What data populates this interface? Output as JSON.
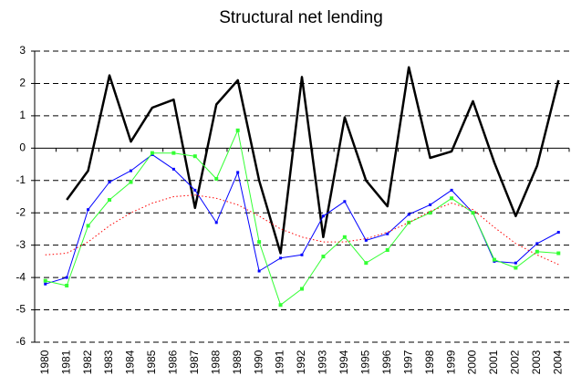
{
  "chart_data": {
    "type": "line",
    "title": "Structural net lending",
    "categories": [
      "1980",
      "1981",
      "1982",
      "1983",
      "1984",
      "1985",
      "1986",
      "1987",
      "1988",
      "1989",
      "1990",
      "1991",
      "1992",
      "1993",
      "1994",
      "1995",
      "1996",
      "1997",
      "1998",
      "1999",
      "2000",
      "2001",
      "2002",
      "2003",
      "2004"
    ],
    "ylim": [
      -6,
      3
    ],
    "yticks": [
      -6,
      -5,
      -4,
      -3,
      -2,
      -1,
      0,
      1,
      2,
      3
    ],
    "grid": true,
    "series": [
      {
        "color": "#000000",
        "width": 2.5,
        "marker": "none",
        "dash": "solid",
        "values": [
          null,
          -1.6,
          -0.7,
          2.25,
          0.2,
          1.25,
          1.5,
          -1.85,
          1.35,
          2.1,
          -1.0,
          -3.25,
          2.2,
          -2.75,
          0.95,
          -1.0,
          -1.8,
          2.5,
          -0.3,
          -0.1,
          1.45,
          -0.45,
          -2.1,
          -0.55,
          2.1
        ]
      },
      {
        "color": "#0000ff",
        "width": 1,
        "marker": "square",
        "dash": "solid",
        "values": [
          -4.2,
          -4.0,
          -1.9,
          -1.05,
          -0.7,
          -0.2,
          -0.65,
          -1.3,
          -2.3,
          -0.75,
          -3.8,
          -3.4,
          -3.3,
          -2.1,
          -1.65,
          -2.85,
          -2.65,
          -2.05,
          -1.75,
          -1.3,
          -2.0,
          -3.5,
          -3.55,
          -2.95,
          -2.6
        ]
      },
      {
        "color": "#33ff33",
        "width": 1,
        "marker": "square",
        "dash": "solid",
        "values": [
          -4.1,
          -4.25,
          -2.4,
          -1.6,
          -1.05,
          -0.15,
          -0.15,
          -0.25,
          -0.95,
          0.55,
          -2.9,
          -4.85,
          -4.35,
          -3.35,
          -2.75,
          -3.55,
          -3.15,
          -2.3,
          -2.0,
          -1.55,
          -2.0,
          -3.45,
          -3.7,
          -3.2,
          -3.25
        ]
      },
      {
        "color": "#ff0000",
        "width": 1,
        "marker": "none",
        "dash": "dotted",
        "values": [
          -3.3,
          -3.25,
          -2.9,
          -2.4,
          -2.0,
          -1.7,
          -1.5,
          -1.45,
          -1.55,
          -1.75,
          -2.1,
          -2.5,
          -2.75,
          -2.9,
          -2.9,
          -2.8,
          -2.6,
          -2.3,
          -1.95,
          -1.7,
          -1.9,
          -2.45,
          -2.95,
          -3.3,
          -3.6
        ]
      }
    ]
  }
}
